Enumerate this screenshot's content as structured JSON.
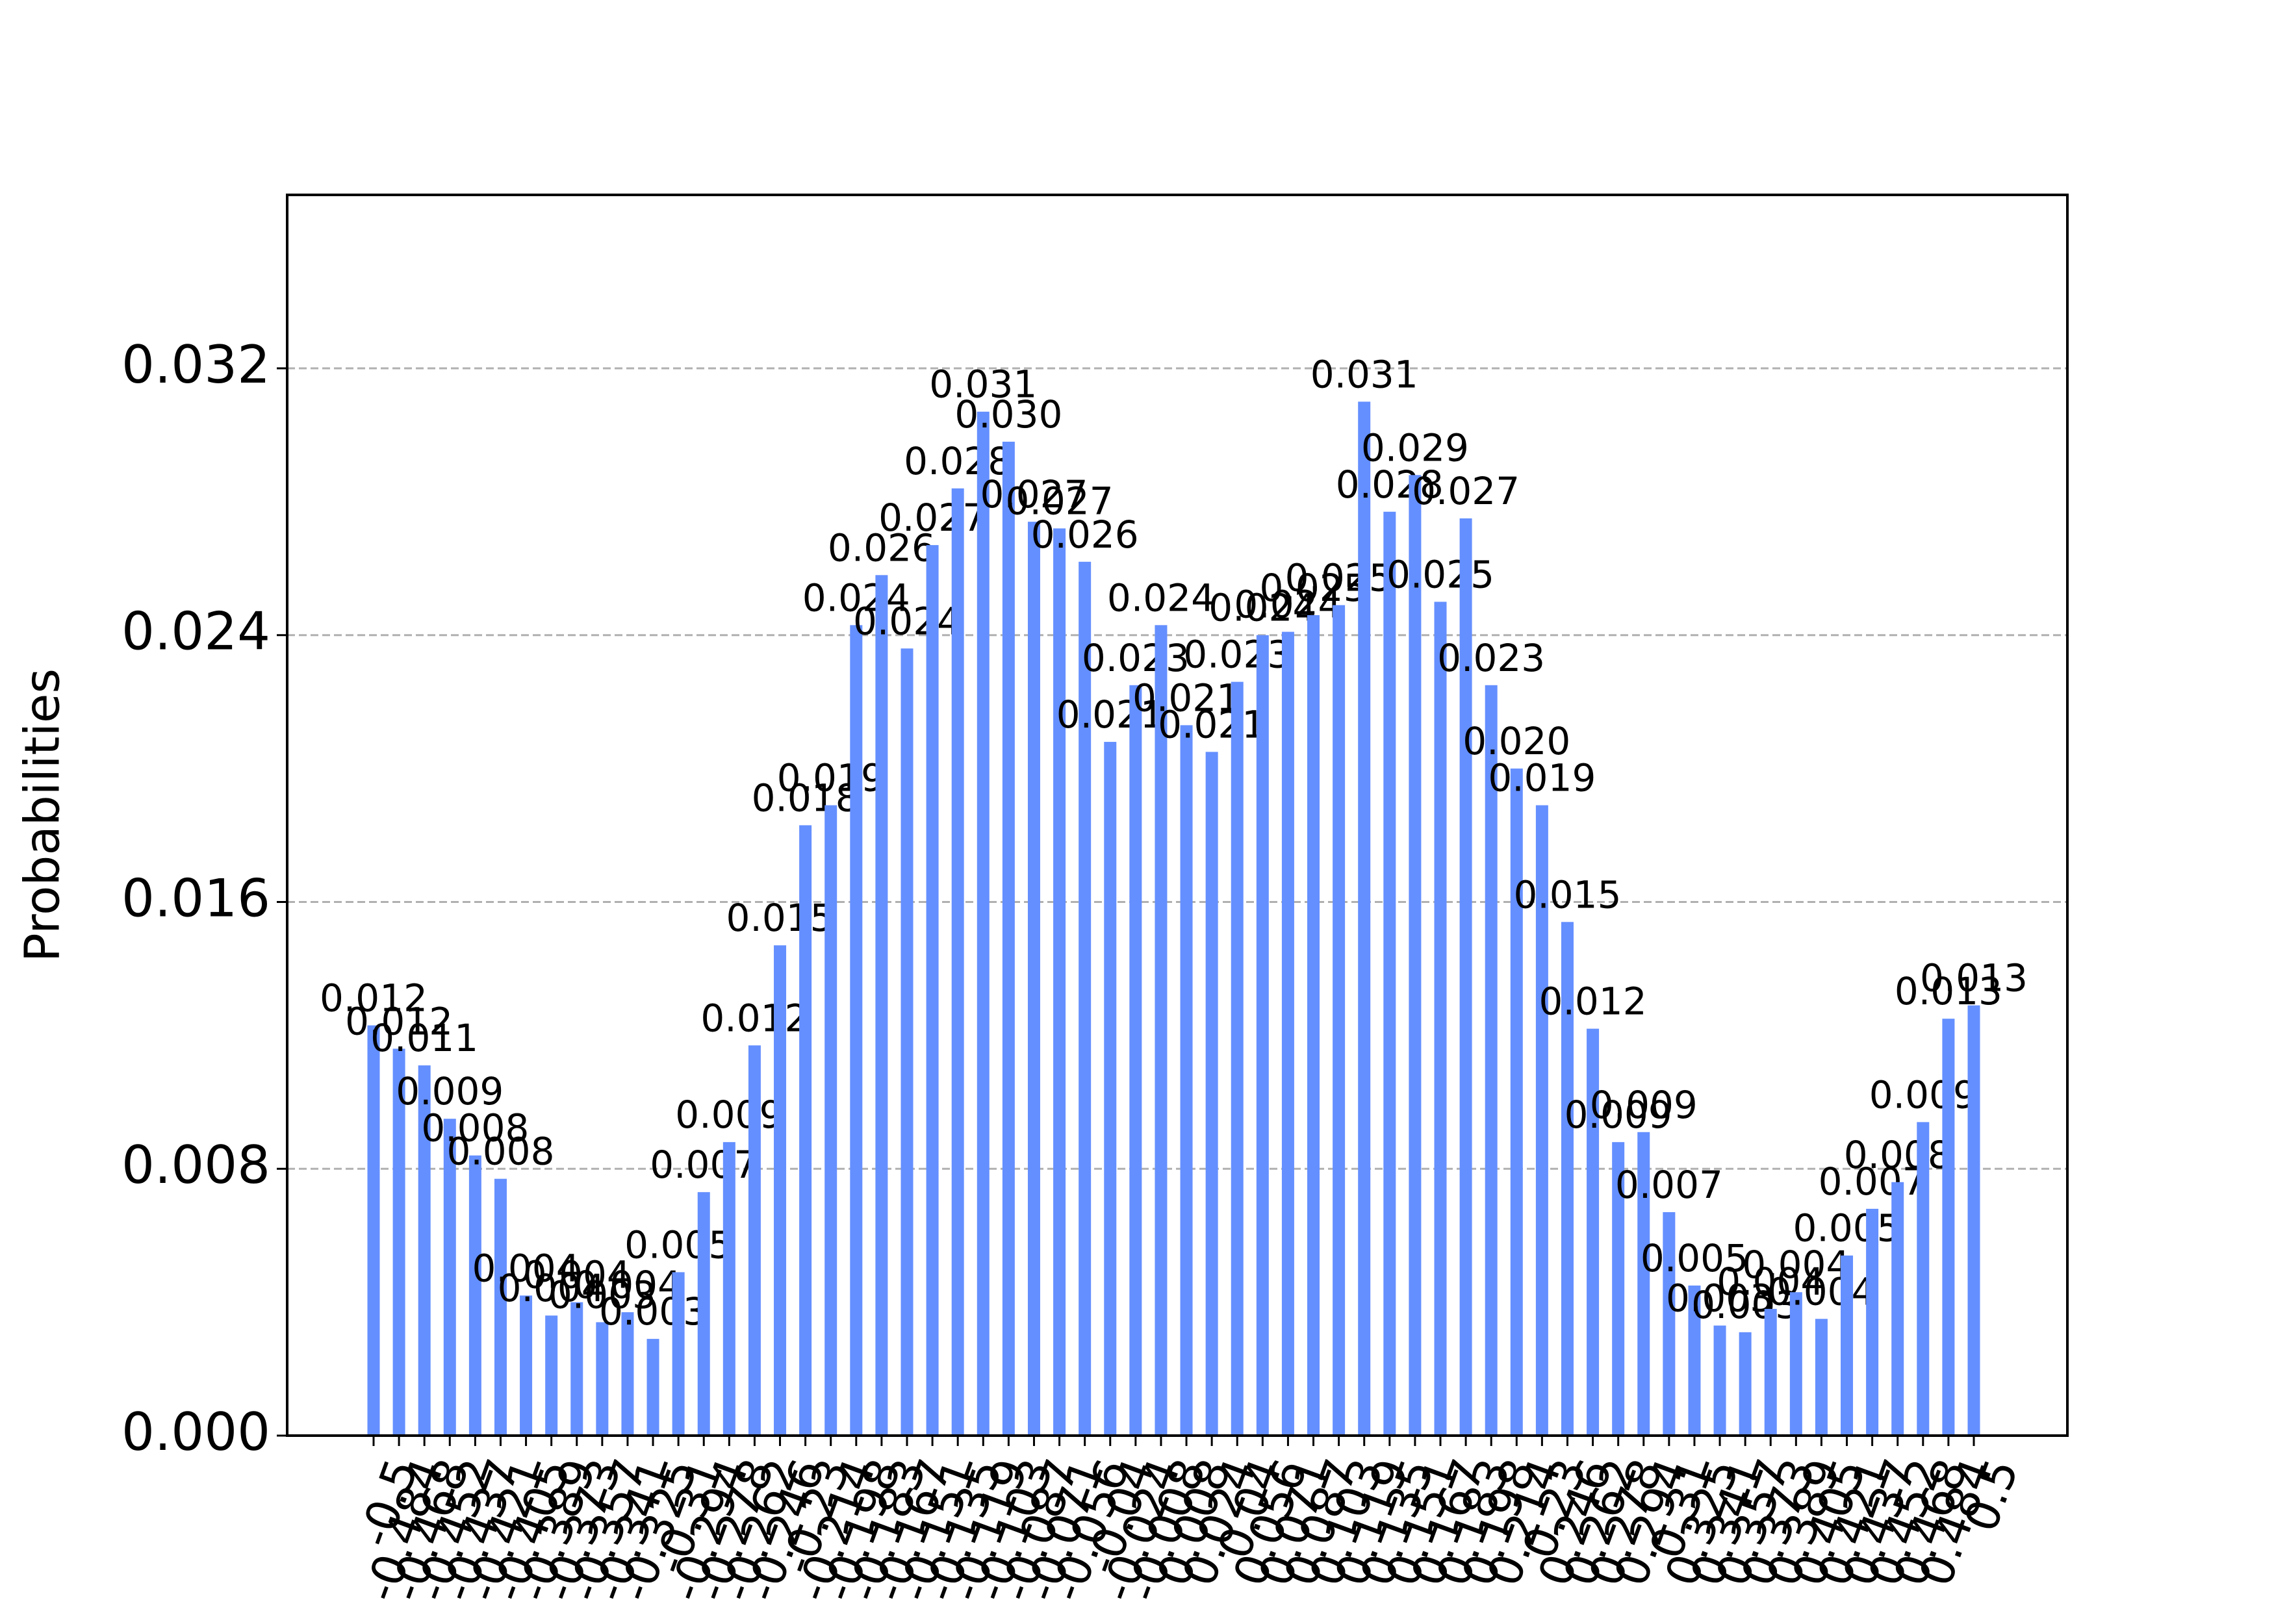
{
  "chart_data": {
    "type": "bar",
    "y_label": "Probabilities",
    "color": "#648fff",
    "grid": true,
    "categories": [
      "-0.5",
      "-0.484",
      "-0.468",
      "-0.452",
      "-0.437",
      "-0.421",
      "-0.405",
      "-0.389",
      "-0.373",
      "-0.357",
      "-0.341",
      "-0.325",
      "-0.31",
      "-0.294",
      "-0.278",
      "-0.262",
      "-0.246",
      "-0.23",
      "-0.214",
      "-0.198",
      "-0.183",
      "-0.167",
      "-0.151",
      "-0.135",
      "-0.119",
      "-0.103",
      "-0.087",
      "-0.071",
      "-0.056",
      "-0.04",
      "-0.024",
      "-0.008",
      "0.008",
      "0.024",
      "0.04",
      "0.056",
      "0.071",
      "0.087",
      "0.103",
      "0.119",
      "0.135",
      "0.151",
      "0.167",
      "0.183",
      "0.198",
      "0.214",
      "0.23",
      "0.246",
      "0.262",
      "0.278",
      "0.294",
      "0.31",
      "0.325",
      "0.341",
      "0.357",
      "0.373",
      "0.389",
      "0.405",
      "0.421",
      "0.437",
      "0.452",
      "0.468",
      "0.484",
      "0.5"
    ],
    "values": [
      0.0123,
      0.0116,
      0.0111,
      0.0095,
      0.0084,
      0.0077,
      0.0042,
      0.0036,
      0.004,
      0.0034,
      0.0037,
      0.0029,
      0.0049,
      0.0073,
      0.0088,
      0.0117,
      0.0147,
      0.0183,
      0.0189,
      0.0243,
      0.0258,
      0.0236,
      0.0267,
      0.0284,
      0.0307,
      0.0298,
      0.0274,
      0.0272,
      0.0262,
      0.0208,
      0.0225,
      0.0243,
      0.0213,
      0.0205,
      0.0226,
      0.024,
      0.0241,
      0.0246,
      0.0249,
      0.031,
      0.0277,
      0.0288,
      0.025,
      0.0275,
      0.0225,
      0.02,
      0.0189,
      0.0154,
      0.0122,
      0.0088,
      0.0091,
      0.0067,
      0.0045,
      0.0033,
      0.0031,
      0.0038,
      0.0043,
      0.0035,
      0.0054,
      0.0068,
      0.0076,
      0.0094,
      0.0125,
      0.0129
    ],
    "value_labels": [
      "0.012",
      "0.012",
      "0.011",
      "0.009",
      "0.008",
      "0.008",
      "0.004",
      "0.004",
      "0.004",
      "0.003",
      "0.004",
      "0.003",
      "0.005",
      "0.007",
      "0.009",
      "0.012",
      "0.015",
      "0.018",
      "0.019",
      "0.024",
      "0.026",
      "0.024",
      "0.027",
      "0.028",
      "0.031",
      "0.030",
      "0.027",
      "0.027",
      "0.026",
      "0.021",
      "0.023",
      "0.024",
      "0.021",
      "0.021",
      "0.023",
      "0.024",
      "0.024",
      "0.025",
      "0.025",
      "0.031",
      "0.028",
      "0.029",
      "0.025",
      "0.027",
      "0.023",
      "0.020",
      "0.019",
      "0.015",
      "0.012",
      "0.009",
      "0.009",
      "0.007",
      "0.005",
      "0.003",
      "0.003",
      "0.004",
      "0.004",
      "0.004",
      "0.005",
      "0.007",
      "0.008",
      "0.009",
      "0.013",
      "0.013"
    ],
    "ylim": [
      0,
      0.0372
    ],
    "yticks": [
      {
        "value": 0,
        "label": "0.000"
      },
      0.008,
      0.016,
      0.024,
      0.032
    ]
  }
}
